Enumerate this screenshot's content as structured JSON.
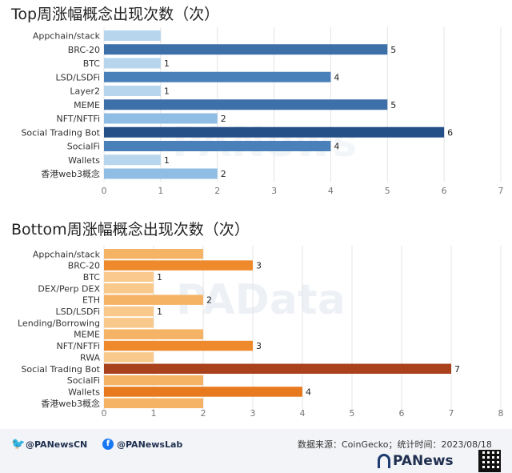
{
  "chart_data": [
    {
      "type": "bar",
      "orientation": "horizontal",
      "title": "Top周涨幅概念出现次数（次）",
      "categories": [
        "Appchain/stack",
        "BRC-20",
        "BTC",
        "LSD/LSDFi",
        "Layer2",
        "MEME",
        "NFT/NFTFi",
        "Social Trading Bot",
        "SocialFi",
        "Wallets",
        "香港web3概念"
      ],
      "values": [
        1,
        5,
        1,
        4,
        1,
        5,
        2,
        6,
        4,
        1,
        2
      ],
      "labels": [
        "",
        "5",
        "1",
        "4",
        "1",
        "5",
        "2",
        "6",
        "4",
        "1",
        "2"
      ],
      "xlim": [
        0,
        7
      ],
      "xticks": [
        "0",
        "1",
        "2",
        "3",
        "4",
        "5",
        "6",
        "7"
      ],
      "grid": "vertical",
      "colors": [
        "#b7d6ee",
        "#3d6fa8",
        "#b7d6ee",
        "#4a80b9",
        "#b7d6ee",
        "#3d6fa8",
        "#8fbde3",
        "#244f87",
        "#4a80b9",
        "#b7d6ee",
        "#8fbde3"
      ]
    },
    {
      "type": "bar",
      "orientation": "horizontal",
      "title": "Bottom周涨幅概念出现次数（次）",
      "categories": [
        "Appchain/stack",
        "BRC-20",
        "BTC",
        "DEX/Perp DEX",
        "ETH",
        "LSD/LSDFi",
        "Lending/Borrowing",
        "MEME",
        "NFT/NFTFi",
        "RWA",
        "Social Trading Bot",
        "SocialFi",
        "Wallets",
        "香港web3概念"
      ],
      "values": [
        2,
        3,
        1,
        1,
        2,
        1,
        1,
        2,
        3,
        1,
        7,
        2,
        4,
        2
      ],
      "labels": [
        "",
        "3",
        "1",
        "",
        "2",
        "1",
        "",
        "",
        "3",
        "",
        "7",
        "",
        "4",
        ""
      ],
      "xlim": [
        0,
        8
      ],
      "xticks": [
        "0",
        "1",
        "2",
        "3",
        "4",
        "5",
        "6",
        "7",
        "8"
      ],
      "grid": "vertical",
      "colors": [
        "#f5b366",
        "#ef8a2c",
        "#f9c98b",
        "#f9c98b",
        "#f5b366",
        "#f9c98b",
        "#f9c98b",
        "#f5b366",
        "#ef8a2c",
        "#f9c98b",
        "#a9411d",
        "#f5b366",
        "#e77a1e",
        "#f5b366"
      ]
    }
  ],
  "watermarks": {
    "top": "PANews",
    "bottom": "PAData"
  },
  "footer": {
    "twitter": "@PANewsCN",
    "facebook": "@PANewsLab",
    "source": "数据来源：CoinGecko；统计时间：2023/08/18",
    "brand": "PANews"
  }
}
